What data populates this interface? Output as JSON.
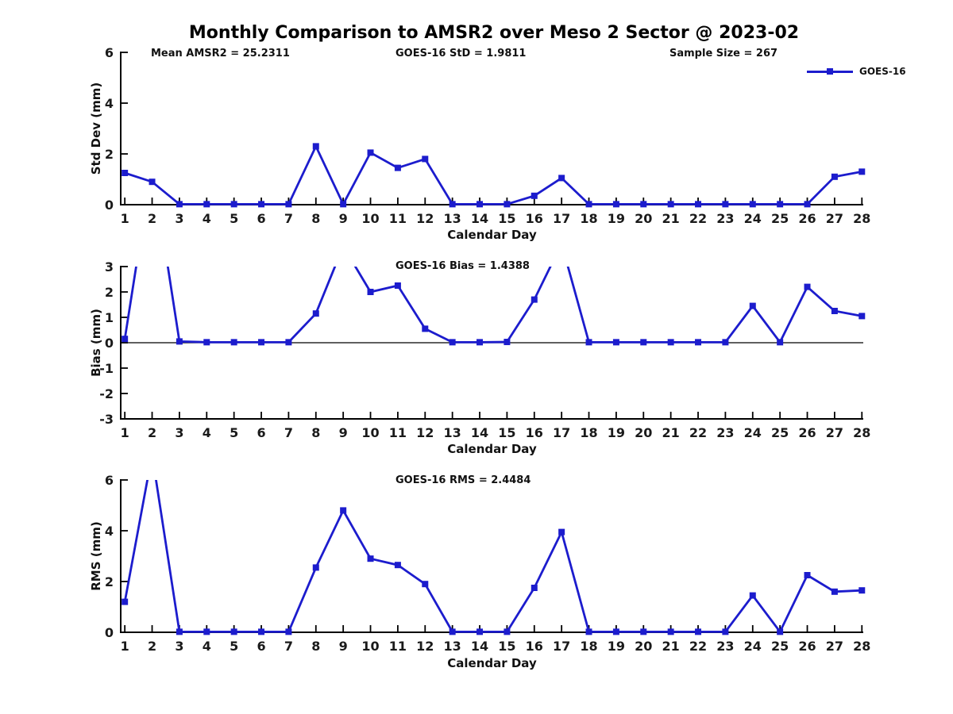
{
  "title": "Monthly Comparison to AMSR2 over Meso 2 Sector @ 2023-02",
  "colors": {
    "line": "#1c1ccd",
    "text": "#1a1a1a",
    "axis": "#000000"
  },
  "legend": {
    "label": "GOES-16"
  },
  "chart_data": [
    {
      "type": "line",
      "name": "std_dev",
      "ylabel": "Std Dev (mm)",
      "xlabel": "Calendar Day",
      "annotations": [
        {
          "text": "Mean AMSR2 = 25.2311"
        },
        {
          "text": "GOES-16 StD = 1.9811"
        },
        {
          "text": "Sample Size = 267"
        }
      ],
      "legend_entries": [
        "GOES-16"
      ],
      "legend_position": "top-right",
      "x": [
        1,
        2,
        3,
        4,
        5,
        6,
        7,
        8,
        9,
        10,
        11,
        12,
        13,
        14,
        15,
        16,
        17,
        18,
        19,
        20,
        21,
        22,
        23,
        24,
        25,
        26,
        27,
        28
      ],
      "series": [
        {
          "name": "GOES-16",
          "values": [
            1.25,
            0.9,
            0.02,
            0.02,
            0.02,
            0.02,
            0.02,
            2.3,
            0.02,
            2.05,
            1.45,
            1.8,
            0.02,
            0.02,
            0.02,
            0.35,
            1.05,
            0.02,
            0.02,
            0.02,
            0.02,
            0.02,
            0.02,
            0.02,
            0.02,
            0.02,
            1.1,
            1.3
          ]
        }
      ],
      "ylim": [
        0,
        6
      ],
      "yticks": [
        0,
        2,
        4,
        6
      ],
      "xlim": [
        0.85,
        28.05
      ],
      "zero_line": false,
      "grid": false
    },
    {
      "type": "line",
      "name": "bias",
      "ylabel": "Bias (mm)",
      "xlabel": "Calendar Day",
      "annotations": [
        {
          "text": "GOES-16 Bias = 1.4388"
        }
      ],
      "x": [
        1,
        2,
        3,
        4,
        5,
        6,
        7,
        8,
        9,
        10,
        11,
        12,
        13,
        14,
        15,
        16,
        17,
        18,
        19,
        20,
        21,
        22,
        23,
        24,
        25,
        26,
        27,
        28
      ],
      "series": [
        {
          "name": "GOES-16",
          "values": [
            0.15,
            7.0,
            0.05,
            0.02,
            0.02,
            0.02,
            0.02,
            1.15,
            3.8,
            2.0,
            2.25,
            0.55,
            0.02,
            0.02,
            0.03,
            1.7,
            3.9,
            0.02,
            0.02,
            0.02,
            0.02,
            0.02,
            0.02,
            1.45,
            0.02,
            2.2,
            1.25,
            1.05
          ],
          "note": "values above ylim max (days 2, 9, 17) are off-scale and clipped at top of axes"
        }
      ],
      "ylim": [
        -3,
        3
      ],
      "yticks": [
        3,
        2,
        1,
        0,
        -1,
        -2,
        -3
      ],
      "xlim": [
        0.85,
        28.05
      ],
      "zero_line": true,
      "grid": false
    },
    {
      "type": "line",
      "name": "rms",
      "ylabel": "RMS (mm)",
      "xlabel": "Calendar Day",
      "annotations": [
        {
          "text": "GOES-16 RMS = 2.4484"
        }
      ],
      "x": [
        1,
        2,
        3,
        4,
        5,
        6,
        7,
        8,
        9,
        10,
        11,
        12,
        13,
        14,
        15,
        16,
        17,
        18,
        19,
        20,
        21,
        22,
        23,
        24,
        25,
        26,
        27,
        28
      ],
      "series": [
        {
          "name": "GOES-16",
          "values": [
            1.2,
            7.0,
            0.02,
            0.02,
            0.02,
            0.02,
            0.02,
            2.55,
            4.8,
            2.9,
            2.65,
            1.9,
            0.02,
            0.02,
            0.02,
            1.75,
            3.95,
            0.02,
            0.02,
            0.02,
            0.02,
            0.02,
            0.02,
            1.45,
            0.02,
            2.25,
            1.6,
            1.65
          ],
          "note": "value above ylim max (day 2) is off-scale and clipped at top of axes"
        }
      ],
      "ylim": [
        0,
        6
      ],
      "yticks": [
        0,
        2,
        4,
        6
      ],
      "xlim": [
        0.85,
        28.05
      ],
      "zero_line": false,
      "grid": false
    }
  ]
}
